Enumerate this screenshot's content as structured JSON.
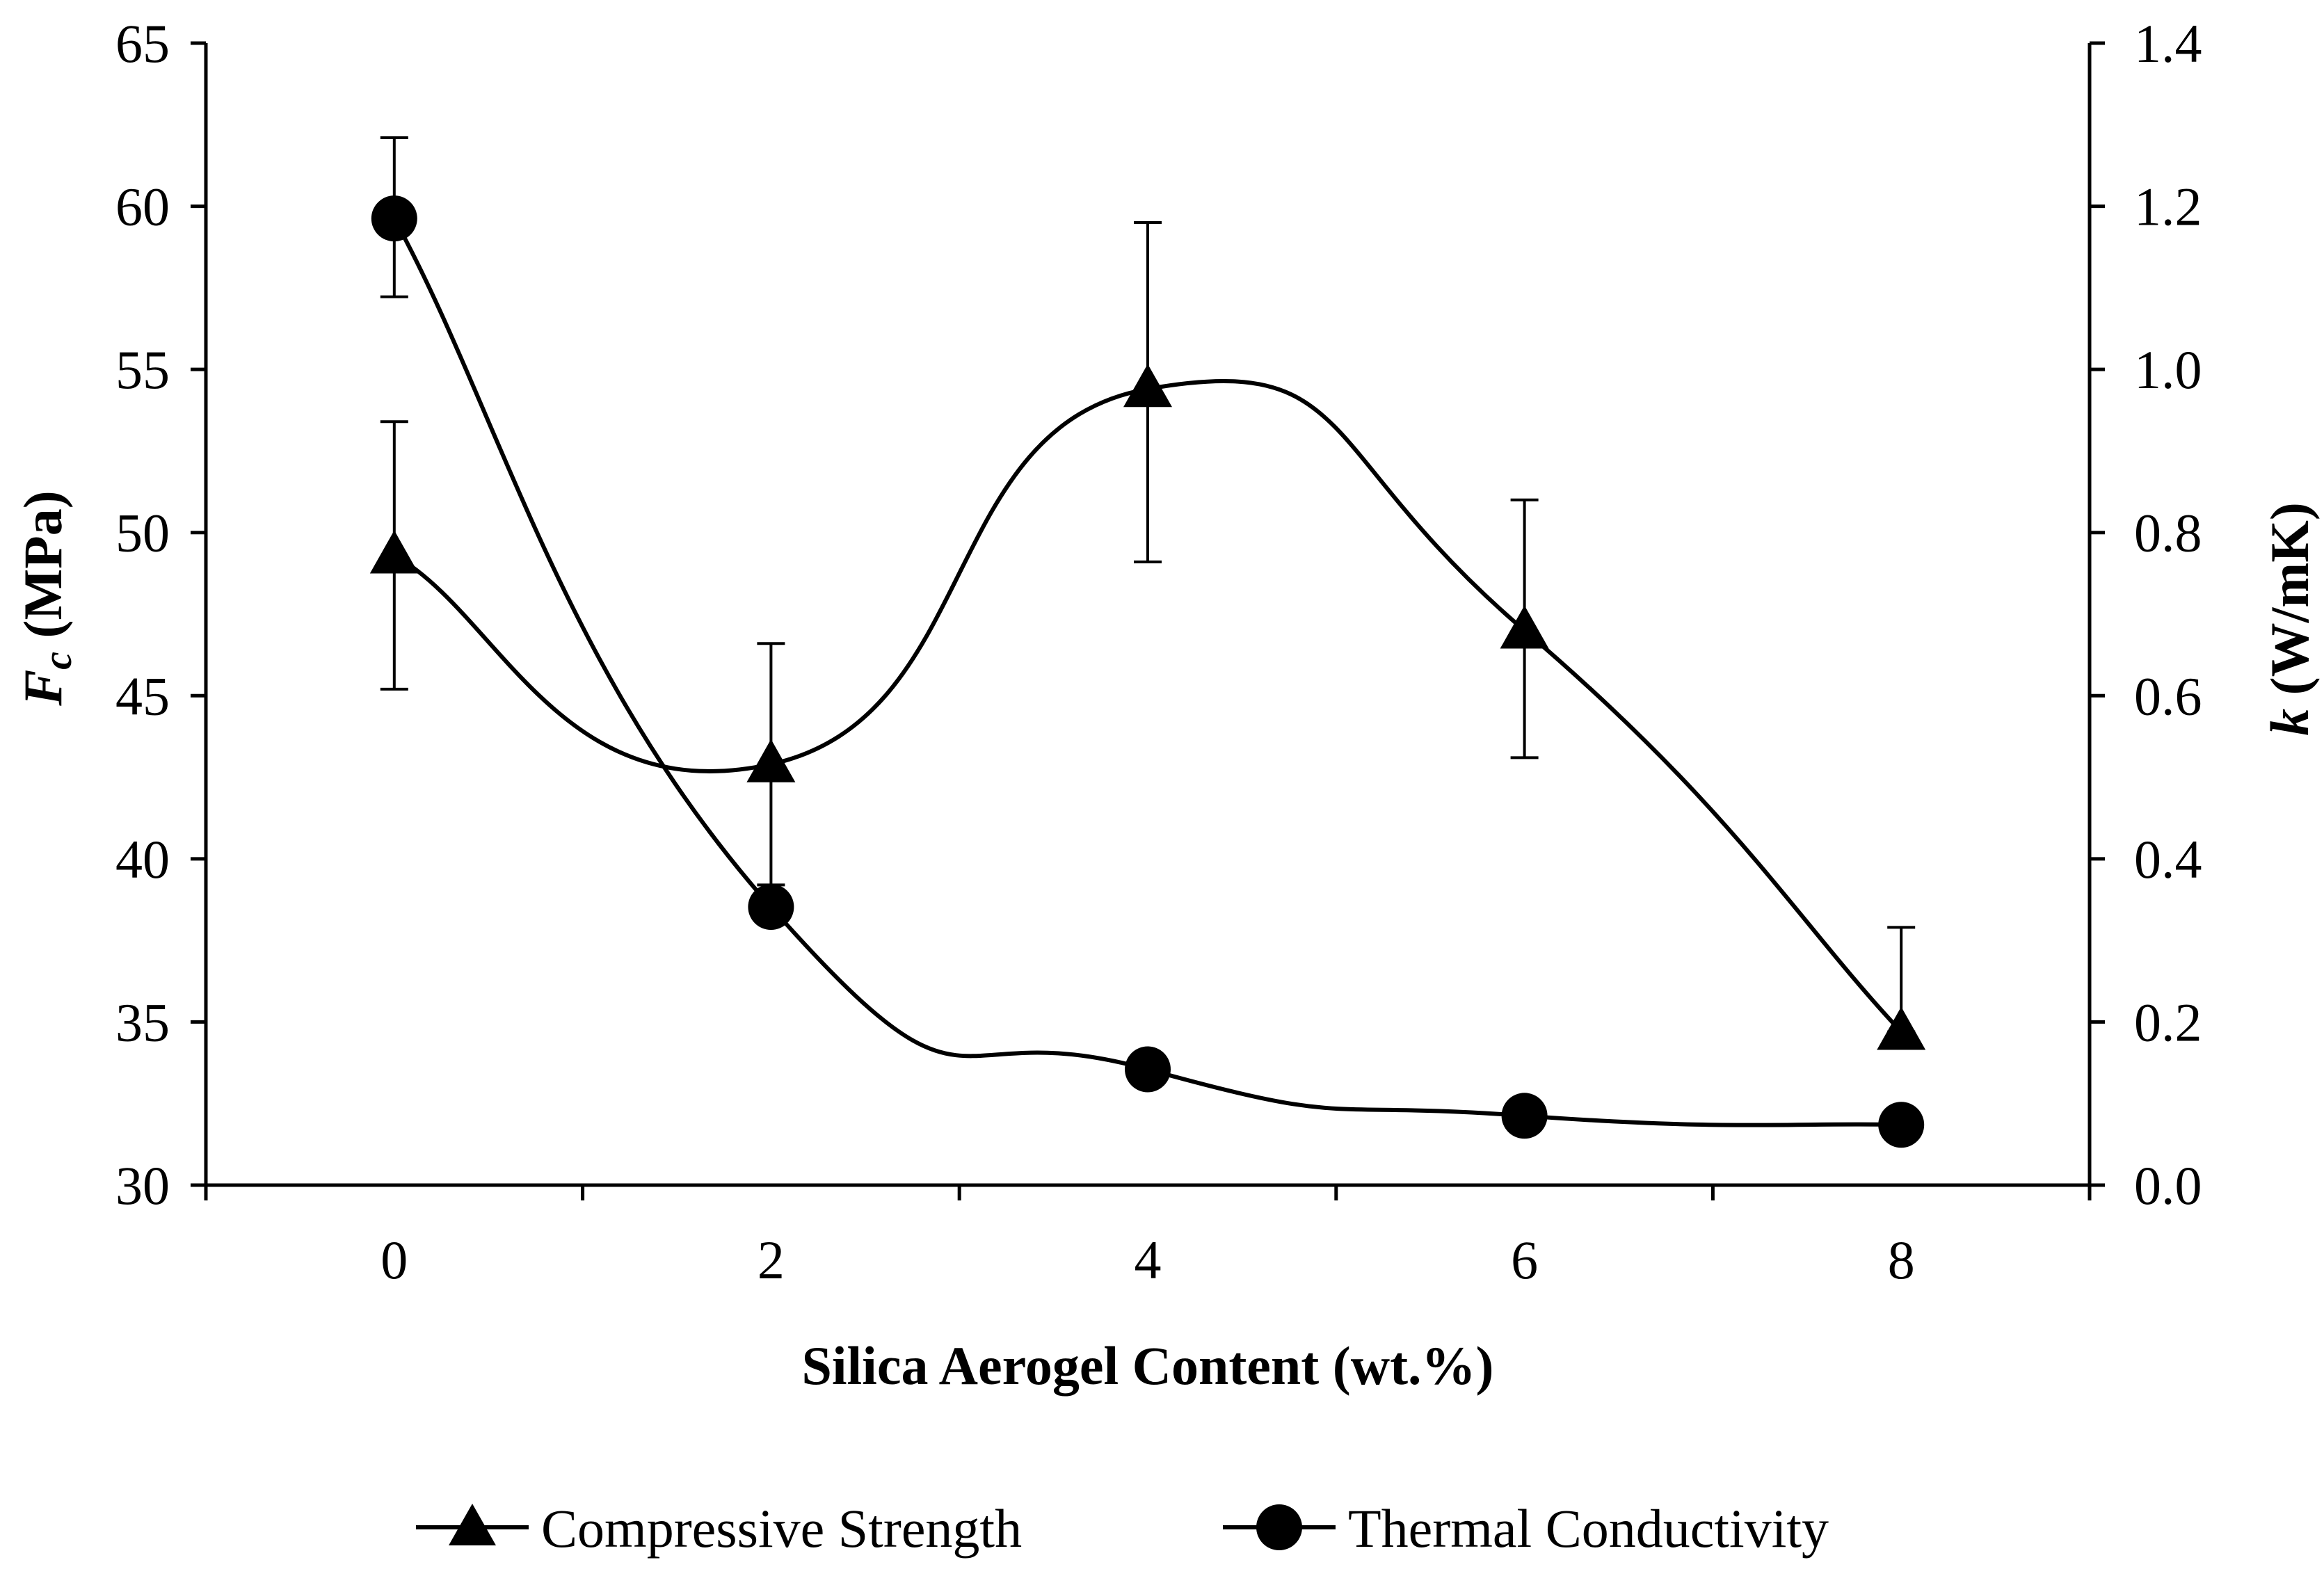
{
  "chart_data": {
    "type": "line",
    "xlabel": "Silica Aerogel Content (wt.%)",
    "ylabel_left": {
      "symbol": "F",
      "subscript": "c",
      "unit": " (MPa)"
    },
    "ylabel_right": {
      "symbol": "k",
      "unit": " (W/mK)"
    },
    "x_ticks": [
      "0",
      "2",
      "4",
      "6",
      "8"
    ],
    "x_values": [
      0,
      2,
      4,
      6,
      8
    ],
    "xlim": [
      -1,
      9
    ],
    "y_left_ticks": [
      "30",
      "35",
      "40",
      "45",
      "50",
      "55",
      "60",
      "65"
    ],
    "y_left_range": [
      30,
      65
    ],
    "y_right_ticks": [
      "0.0",
      "0.2",
      "0.4",
      "0.6",
      "0.8",
      "1.0",
      "1.2",
      "1.4"
    ],
    "y_right_range": [
      0,
      1.4
    ],
    "series": [
      {
        "name": "Compressive Strength",
        "axis": "left",
        "marker": "triangle",
        "values": [
          49.3,
          42.9,
          54.4,
          47.0,
          34.7
        ],
        "error_upper": [
          53.4,
          46.6,
          59.5,
          51.0,
          37.9
        ],
        "error_lower": [
          45.2,
          39.2,
          49.1,
          43.1,
          34.7
        ],
        "legend_label": "Compressive Strength"
      },
      {
        "name": "Thermal Conductivity",
        "axis": "right",
        "marker": "circle",
        "values": [
          1.185,
          0.341,
          0.142,
          0.085,
          0.074
        ],
        "error_upper": [
          1.284,
          0.341,
          0.142,
          0.085,
          0.074
        ],
        "error_lower": [
          1.089,
          0.341,
          0.142,
          0.085,
          0.074
        ],
        "legend_label": "Thermal Conductivity"
      }
    ],
    "legend_position": "bottom-center",
    "grid": false
  }
}
